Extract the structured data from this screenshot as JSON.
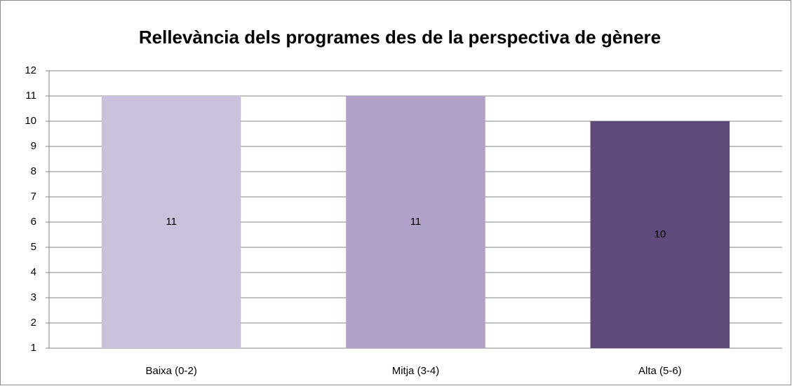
{
  "chart_data": {
    "type": "bar",
    "title": "Rellevància dels programes des de la perspectiva de gènere",
    "categories": [
      "Baixa (0-2)",
      "Mitja (3-4)",
      "Alta (5-6)"
    ],
    "values": [
      11,
      11,
      10
    ],
    "colors": [
      "#cbc1dd",
      "#b1a1c8",
      "#604a7b"
    ],
    "ylim": [
      1,
      12
    ],
    "yticks": [
      1,
      2,
      3,
      4,
      5,
      6,
      7,
      8,
      9,
      10,
      11,
      12
    ],
    "grid": true
  }
}
